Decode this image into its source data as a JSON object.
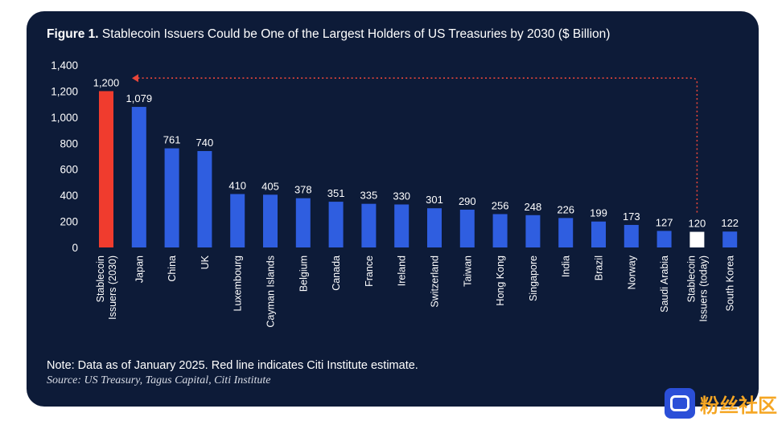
{
  "header": {
    "figure_label": "Figure 1.",
    "title": "Stablecoin Issuers Could be One of the Largest Holders of US Treasuries by 2030 ($ Billion)"
  },
  "footer": {
    "note": "Note: Data as of January 2025. Red line indicates Citi Institute estimate.",
    "source": "Source: US Treasury, Tagus Capital, Citi Institute"
  },
  "watermark": {
    "text": "粉丝社区"
  },
  "colors": {
    "background": "#0d1b38",
    "bar_default": "#2f5ee0",
    "bar_estimate": "#f03c2e",
    "bar_today": "#ffffff",
    "estimate_line": "#e8463a"
  },
  "chart_data": {
    "type": "bar",
    "categories": [
      "Stablecoin Issuers (2030)",
      "Japan",
      "China",
      "UK",
      "Luxembourg",
      "Cayman Islands",
      "Belgium",
      "Canada",
      "France",
      "Ireland",
      "Switzerland",
      "Taiwan",
      "Hong Kong",
      "Singapore",
      "India",
      "Brazil",
      "Norway",
      "Saudi Arabia",
      "Stablecoin Issuers (today)",
      "South Korea"
    ],
    "category_lines": [
      [
        "Stablecoin",
        "Issuers (2030)"
      ],
      [
        "Japan"
      ],
      [
        "China"
      ],
      [
        "UK"
      ],
      [
        "Luxembourg"
      ],
      [
        "Cayman Islands"
      ],
      [
        "Belgium"
      ],
      [
        "Canada"
      ],
      [
        "France"
      ],
      [
        "Ireland"
      ],
      [
        "Switzerland"
      ],
      [
        "Taiwan"
      ],
      [
        "Hong Kong"
      ],
      [
        "Singapore"
      ],
      [
        "India"
      ],
      [
        "Brazil"
      ],
      [
        "Norway"
      ],
      [
        "Saudi Arabia"
      ],
      [
        "Stablecoin",
        "Issuers (today)"
      ],
      [
        "South Korea"
      ]
    ],
    "values": [
      1200,
      1079,
      761,
      740,
      410,
      405,
      378,
      351,
      335,
      330,
      301,
      290,
      256,
      248,
      226,
      199,
      173,
      127,
      120,
      122
    ],
    "value_labels": [
      "1,200",
      "1,079",
      "761",
      "740",
      "410",
      "405",
      "378",
      "351",
      "335",
      "330",
      "301",
      "290",
      "256",
      "248",
      "226",
      "199",
      "173",
      "127",
      "120",
      "122"
    ],
    "bar_colors": [
      "#f03c2e",
      "#2f5ee0",
      "#2f5ee0",
      "#2f5ee0",
      "#2f5ee0",
      "#2f5ee0",
      "#2f5ee0",
      "#2f5ee0",
      "#2f5ee0",
      "#2f5ee0",
      "#2f5ee0",
      "#2f5ee0",
      "#2f5ee0",
      "#2f5ee0",
      "#2f5ee0",
      "#2f5ee0",
      "#2f5ee0",
      "#2f5ee0",
      "#ffffff",
      "#2f5ee0"
    ],
    "ylim": [
      0,
      1400
    ],
    "yticks": [
      0,
      200,
      400,
      600,
      800,
      1000,
      1200,
      1400
    ],
    "ytick_labels": [
      "0",
      "200",
      "400",
      "600",
      "800",
      "1,000",
      "1,200",
      "1,400"
    ],
    "grid": false,
    "legend": "none",
    "annotation": {
      "type": "dotted-arrow",
      "from_category": "Stablecoin Issuers (today)",
      "to_category": "Stablecoin Issuers (2030)",
      "level": 1300
    }
  }
}
